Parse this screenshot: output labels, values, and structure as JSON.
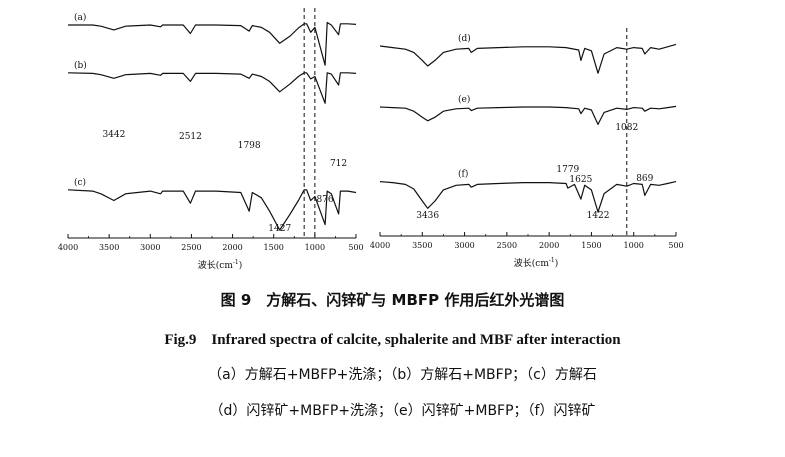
{
  "colors": {
    "line": "#111111",
    "guide": "#111111",
    "background": "#ffffff"
  },
  "chart_data": [
    {
      "type": "line",
      "title": "",
      "xlabel": "波长(cm-1)",
      "xlabel_main": "波长(cm",
      "xlabel_sup": "-1",
      "xlabel_close": ")",
      "xlim": [
        4000,
        500
      ],
      "x_reversed": true,
      "xticks": [
        4000,
        3500,
        3000,
        2500,
        2000,
        1500,
        1000,
        500
      ],
      "ylabel": "",
      "y_axis_shown": false,
      "guide_lines_x": [
        1130,
        1000
      ],
      "series": [
        {
          "name": "(a)",
          "points": [
            [
              4000,
              0.82
            ],
            [
              3700,
              0.82
            ],
            [
              3600,
              0.8
            ],
            [
              3442,
              0.74
            ],
            [
              3300,
              0.8
            ],
            [
              3000,
              0.82
            ],
            [
              2875,
              0.79
            ],
            [
              2850,
              0.82
            ],
            [
              2600,
              0.82
            ],
            [
              2512,
              0.68
            ],
            [
              2450,
              0.82
            ],
            [
              2200,
              0.82
            ],
            [
              1900,
              0.81
            ],
            [
              1798,
              0.72
            ],
            [
              1760,
              0.81
            ],
            [
              1650,
              0.78
            ],
            [
              1550,
              0.7
            ],
            [
              1427,
              0.52
            ],
            [
              1300,
              0.64
            ],
            [
              1200,
              0.77
            ],
            [
              1130,
              0.84
            ],
            [
              1100,
              0.84
            ],
            [
              1050,
              0.7
            ],
            [
              1000,
              0.78
            ],
            [
              876,
              0.16
            ],
            [
              850,
              0.86
            ],
            [
              800,
              0.82
            ],
            [
              712,
              0.66
            ],
            [
              690,
              0.84
            ],
            [
              600,
              0.84
            ],
            [
              500,
              0.83
            ]
          ]
        },
        {
          "name": "(b)",
          "points": [
            [
              4000,
              0.56
            ],
            [
              3700,
              0.55
            ],
            [
              3600,
              0.53
            ],
            [
              3442,
              0.47
            ],
            [
              3300,
              0.53
            ],
            [
              3000,
              0.55
            ],
            [
              2875,
              0.52
            ],
            [
              2850,
              0.55
            ],
            [
              2600,
              0.55
            ],
            [
              2512,
              0.42
            ],
            [
              2450,
              0.55
            ],
            [
              2200,
              0.55
            ],
            [
              1900,
              0.54
            ],
            [
              1798,
              0.47
            ],
            [
              1760,
              0.54
            ],
            [
              1650,
              0.5
            ],
            [
              1550,
              0.42
            ],
            [
              1427,
              0.25
            ],
            [
              1300,
              0.38
            ],
            [
              1200,
              0.5
            ],
            [
              1130,
              0.56
            ],
            [
              1100,
              0.56
            ],
            [
              1050,
              0.46
            ],
            [
              1000,
              0.5
            ],
            [
              876,
              0.06
            ],
            [
              850,
              0.56
            ],
            [
              800,
              0.54
            ],
            [
              712,
              0.36
            ],
            [
              690,
              0.56
            ],
            [
              600,
              0.56
            ],
            [
              500,
              0.55
            ]
          ]
        },
        {
          "name": "(c)",
          "points": [
            [
              4000,
              0.3
            ],
            [
              3700,
              0.29
            ],
            [
              3600,
              0.27
            ],
            [
              3442,
              0.22
            ],
            [
              3300,
              0.27
            ],
            [
              3000,
              0.29
            ],
            [
              2875,
              0.27
            ],
            [
              2850,
              0.29
            ],
            [
              2600,
              0.29
            ],
            [
              2512,
              0.2
            ],
            [
              2450,
              0.29
            ],
            [
              2200,
              0.29
            ],
            [
              1900,
              0.28
            ],
            [
              1798,
              0.14
            ],
            [
              1760,
              0.28
            ],
            [
              1650,
              0.24
            ],
            [
              1550,
              0.14
            ],
            [
              1427,
              0.0
            ],
            [
              1300,
              0.12
            ],
            [
              1200,
              0.22
            ],
            [
              1130,
              0.3
            ],
            [
              1100,
              0.3
            ],
            [
              1050,
              0.22
            ],
            [
              1000,
              0.25
            ],
            [
              876,
              0.04
            ],
            [
              850,
              0.29
            ],
            [
              800,
              0.27
            ],
            [
              712,
              0.12
            ],
            [
              690,
              0.29
            ],
            [
              600,
              0.29
            ],
            [
              500,
              0.28
            ]
          ]
        }
      ],
      "annotations": [
        {
          "text": "3442",
          "x": 3442
        },
        {
          "text": "2512",
          "x": 2512
        },
        {
          "text": "1798",
          "x": 1798
        },
        {
          "text": "1427",
          "x": 1427
        },
        {
          "text": "876",
          "x": 876
        },
        {
          "text": "712",
          "x": 712
        }
      ]
    },
    {
      "type": "line",
      "title": "",
      "xlabel": "波长(cm-1)",
      "xlabel_main": "波长(cm",
      "xlabel_sup": "-1",
      "xlabel_close": ")",
      "xlim": [
        4000,
        500
      ],
      "x_reversed": true,
      "xticks": [
        4000,
        3500,
        3000,
        2500,
        2000,
        1500,
        1000,
        500
      ],
      "ylabel": "",
      "y_axis_shown": false,
      "guide_lines_x": [
        1082
      ],
      "series": [
        {
          "name": "(d)",
          "points": [
            [
              4000,
              0.8
            ],
            [
              3850,
              0.78
            ],
            [
              3700,
              0.76
            ],
            [
              3600,
              0.72
            ],
            [
              3500,
              0.62
            ],
            [
              3436,
              0.55
            ],
            [
              3350,
              0.62
            ],
            [
              3250,
              0.72
            ],
            [
              3100,
              0.76
            ],
            [
              2950,
              0.77
            ],
            [
              2920,
              0.72
            ],
            [
              2850,
              0.77
            ],
            [
              2600,
              0.78
            ],
            [
              2300,
              0.79
            ],
            [
              2000,
              0.79
            ],
            [
              1800,
              0.78
            ],
            [
              1650,
              0.75
            ],
            [
              1625,
              0.62
            ],
            [
              1580,
              0.77
            ],
            [
              1500,
              0.74
            ],
            [
              1422,
              0.46
            ],
            [
              1350,
              0.7
            ],
            [
              1200,
              0.78
            ],
            [
              1082,
              0.76
            ],
            [
              1000,
              0.78
            ],
            [
              900,
              0.77
            ],
            [
              869,
              0.7
            ],
            [
              800,
              0.78
            ],
            [
              700,
              0.76
            ],
            [
              600,
              0.79
            ],
            [
              500,
              0.82
            ]
          ]
        },
        {
          "name": "(e)",
          "points": [
            [
              4000,
              0.55
            ],
            [
              3850,
              0.54
            ],
            [
              3700,
              0.53
            ],
            [
              3600,
              0.48
            ],
            [
              3500,
              0.38
            ],
            [
              3436,
              0.32
            ],
            [
              3350,
              0.38
            ],
            [
              3250,
              0.48
            ],
            [
              3100,
              0.52
            ],
            [
              2950,
              0.53
            ],
            [
              2920,
              0.49
            ],
            [
              2850,
              0.53
            ],
            [
              2600,
              0.54
            ],
            [
              2300,
              0.55
            ],
            [
              2000,
              0.55
            ],
            [
              1800,
              0.54
            ],
            [
              1650,
              0.52
            ],
            [
              1625,
              0.44
            ],
            [
              1580,
              0.53
            ],
            [
              1500,
              0.5
            ],
            [
              1422,
              0.26
            ],
            [
              1350,
              0.46
            ],
            [
              1200,
              0.53
            ],
            [
              1082,
              0.51
            ],
            [
              1000,
              0.54
            ],
            [
              900,
              0.53
            ],
            [
              869,
              0.48
            ],
            [
              800,
              0.53
            ],
            [
              700,
              0.52
            ],
            [
              600,
              0.54
            ],
            [
              500,
              0.56
            ]
          ]
        },
        {
          "name": "(f)",
          "points": [
            [
              4000,
              0.33
            ],
            [
              3850,
              0.32
            ],
            [
              3700,
              0.3
            ],
            [
              3600,
              0.25
            ],
            [
              3500,
              0.12
            ],
            [
              3436,
              0.04
            ],
            [
              3350,
              0.12
            ],
            [
              3250,
              0.24
            ],
            [
              3100,
              0.29
            ],
            [
              2950,
              0.3
            ],
            [
              2920,
              0.27
            ],
            [
              2850,
              0.3
            ],
            [
              2600,
              0.31
            ],
            [
              2300,
              0.32
            ],
            [
              2000,
              0.32
            ],
            [
              1800,
              0.31
            ],
            [
              1779,
              0.26
            ],
            [
              1700,
              0.3
            ],
            [
              1625,
              0.14
            ],
            [
              1580,
              0.29
            ],
            [
              1500,
              0.24
            ],
            [
              1422,
              0.0
            ],
            [
              1350,
              0.2
            ],
            [
              1200,
              0.3
            ],
            [
              1082,
              0.28
            ],
            [
              1000,
              0.31
            ],
            [
              900,
              0.3
            ],
            [
              869,
              0.18
            ],
            [
              800,
              0.3
            ],
            [
              700,
              0.29
            ],
            [
              600,
              0.31
            ],
            [
              500,
              0.33
            ]
          ]
        }
      ],
      "annotations": [
        {
          "text": "3436",
          "x": 3436
        },
        {
          "text": "1625",
          "x": 1625
        },
        {
          "text": "1422",
          "x": 1422
        },
        {
          "text": "1082",
          "x": 1082
        },
        {
          "text": "1779",
          "x": 1779
        },
        {
          "text": "869",
          "x": 869
        }
      ]
    }
  ],
  "caption_cn": "图 9　方解石、闪锌矿与 MBFP 作用后红外光谱图",
  "caption_en": "Fig.9　Infrared spectra of calcite, sphalerite and MBF after interaction",
  "legend_line1": "（a）方解石+MBFP+洗涤；（b）方解石+MBFP；（c）方解石",
  "legend_line2": "（d）闪锌矿+MBFP+洗涤；（e）闪锌矿+MBFP；（f）闪锌矿"
}
